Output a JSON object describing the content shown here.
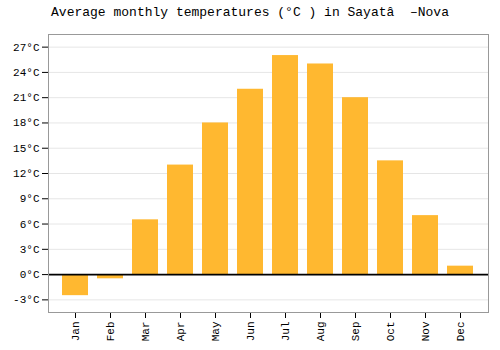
{
  "chart_data": {
    "type": "bar",
    "title": "Average monthly temperatures (°C ) in Sayatâ  –Nova",
    "categories": [
      "Jan",
      "Feb",
      "Mar",
      "Apr",
      "May",
      "Jun",
      "Jul",
      "Aug",
      "Sep",
      "Oct",
      "Nov",
      "Dec"
    ],
    "values": [
      -2.5,
      -0.5,
      6.5,
      13.0,
      18.0,
      22.0,
      26.0,
      25.0,
      21.0,
      13.5,
      7.0,
      1.0
    ],
    "color": "#FFB830",
    "ylim": [
      -4.5,
      28.5
    ],
    "yticks": [
      {
        "value": -3,
        "label": "-3°C"
      },
      {
        "value": 0,
        "label": "0°C"
      },
      {
        "value": 3,
        "label": "3°C"
      },
      {
        "value": 6,
        "label": "6°C"
      },
      {
        "value": 9,
        "label": "9°C"
      },
      {
        "value": 12,
        "label": "12°C"
      },
      {
        "value": 15,
        "label": "15°C"
      },
      {
        "value": 18,
        "label": "18°C"
      },
      {
        "value": 21,
        "label": "21°C"
      },
      {
        "value": 24,
        "label": "24°C"
      },
      {
        "value": 27,
        "label": "27°C"
      }
    ],
    "grid": true
  }
}
